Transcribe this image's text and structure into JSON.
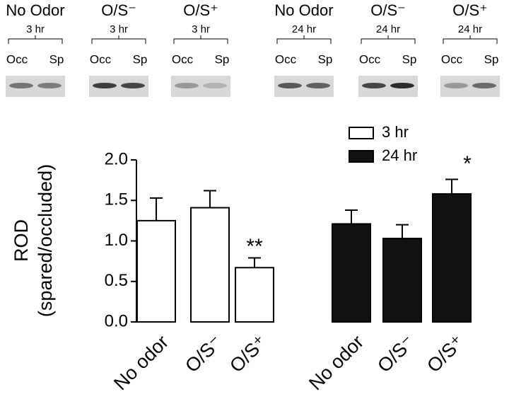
{
  "blots": [
    {
      "condition": "No Odor",
      "time": "3 hr",
      "lanes": [
        "Occ",
        "Sp"
      ]
    },
    {
      "condition": "O/S⁻",
      "time": "3 hr",
      "lanes": [
        "Occ",
        "Sp"
      ]
    },
    {
      "condition": "O/S⁺",
      "time": "3 hr",
      "lanes": [
        "Occ",
        "Sp"
      ]
    },
    {
      "condition": "No Odor",
      "time": "24 hr",
      "lanes": [
        "Occ",
        "Sp"
      ]
    },
    {
      "condition": "O/S⁻",
      "time": "24 hr",
      "lanes": [
        "Occ",
        "Sp"
      ]
    },
    {
      "condition": "O/S⁺",
      "time": "24 hr",
      "lanes": [
        "Occ",
        "Sp"
      ]
    }
  ],
  "chart_data": {
    "type": "bar",
    "y_label": [
      "ROD",
      "(spared/occluded)"
    ],
    "categories": [
      "No odor",
      "O/S⁻",
      "O/S⁺",
      "No odor",
      "O/S⁻",
      "O/S⁺"
    ],
    "series": [
      {
        "name": "3 hr",
        "color": "#ffffff",
        "values": [
          1.25,
          1.41,
          0.67,
          null,
          null,
          null
        ],
        "errors": [
          0.28,
          0.21,
          0.12,
          null,
          null,
          null
        ]
      },
      {
        "name": "24 hr",
        "color": "#111111",
        "values": [
          null,
          null,
          null,
          1.21,
          1.03,
          1.58
        ],
        "errors": [
          null,
          null,
          null,
          0.17,
          0.17,
          0.18
        ]
      }
    ],
    "annotations": [
      "**",
      "*"
    ],
    "ylim": [
      0,
      2
    ],
    "yticks": [
      {
        "value": 0,
        "label": "0.0"
      },
      {
        "value": 0.5,
        "label": "0.5"
      },
      {
        "value": 1,
        "label": "1.0"
      },
      {
        "value": 1.5,
        "label": "1.5"
      },
      {
        "value": 2,
        "label": "2.0"
      }
    ]
  }
}
